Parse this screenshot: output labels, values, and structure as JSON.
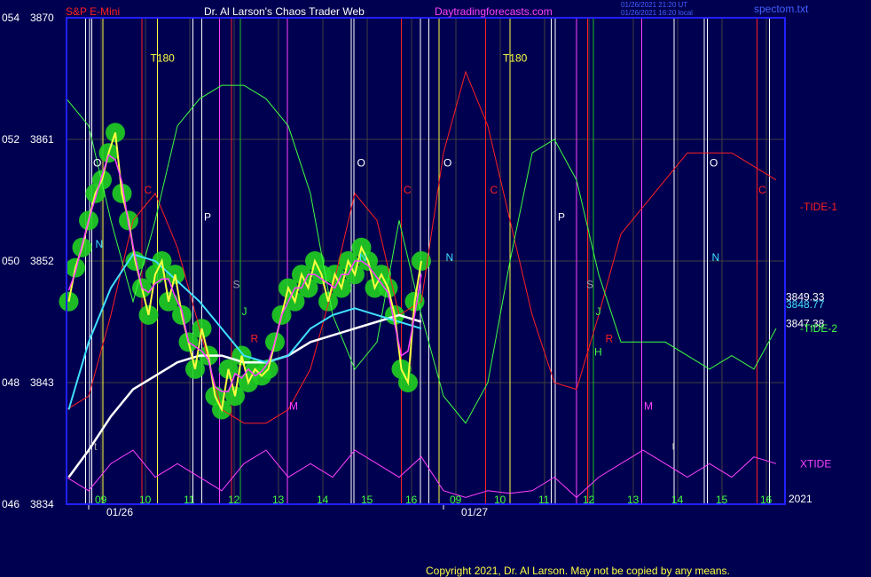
{
  "header": {
    "instrument": "S&P E-Mini",
    "title": "Dr. Al Larson's Chaos Trader Web",
    "site": "Daytradingforecasts.com",
    "timestamp_line1": "01/26/2021 21:20 UT",
    "timestamp_line2": "01/26/2021 16:20 local",
    "filename": "spectom.txt"
  },
  "footer": {
    "copyright": "Copyright 2021, Dr. Al Larson. May not be copied by any means.",
    "year": "2021"
  },
  "colors": {
    "background": "#000050",
    "plot_border": "#2020ff",
    "grid": "#404040",
    "price": "#ffff40",
    "fast_avg": "#ff40ff",
    "ema_cyan": "#40e0ff",
    "ema_white": "#ffffff",
    "tide1": "#ff2020",
    "tide2": "#40ff40",
    "xtide": "#ff40ff",
    "bubble": "#20d020",
    "title_color": "#ffffff",
    "site_color": "#ff40ff"
  },
  "chart_data": {
    "type": "line",
    "title": "S&P E-Mini",
    "ylim": [
      3834,
      3870
    ],
    "y_ticks": [
      {
        "left": "054",
        "price": "3870",
        "value": 3870
      },
      {
        "left": "052",
        "price": "3861",
        "value": 3861
      },
      {
        "left": "050",
        "price": "3852",
        "value": 3852
      },
      {
        "left": "048",
        "price": "3843",
        "value": 3843
      },
      {
        "left": "046",
        "price": "3834",
        "value": 3834
      }
    ],
    "x_hour_labels": [
      {
        "label": "09",
        "t": 0.78
      },
      {
        "label": "10",
        "t": 1.78
      },
      {
        "label": "11",
        "t": 2.78
      },
      {
        "label": "12",
        "t": 3.78
      },
      {
        "label": "13",
        "t": 4.78
      },
      {
        "label": "14",
        "t": 5.78
      },
      {
        "label": "15",
        "t": 6.78
      },
      {
        "label": "16",
        "t": 7.78
      },
      {
        "label": "09",
        "t": 8.78
      },
      {
        "label": "10",
        "t": 9.78
      },
      {
        "label": "11",
        "t": 10.78
      },
      {
        "label": "12",
        "t": 11.78
      },
      {
        "label": "13",
        "t": 12.78
      },
      {
        "label": "14",
        "t": 13.78
      },
      {
        "label": "15",
        "t": 14.78
      },
      {
        "label": "16",
        "t": 15.78
      }
    ],
    "date_labels": [
      {
        "label": "01/26",
        "t": 0.5
      },
      {
        "label": "01/27",
        "t": 8.5
      }
    ],
    "series": [
      {
        "name": "price",
        "x": [
          0.05,
          0.2,
          0.35,
          0.5,
          0.65,
          0.8,
          0.95,
          1.1,
          1.25,
          1.4,
          1.55,
          1.7,
          1.85,
          2.0,
          2.15,
          2.3,
          2.45,
          2.6,
          2.75,
          2.9,
          3.05,
          3.2,
          3.35,
          3.5,
          3.65,
          3.8,
          3.95,
          4.1,
          4.25,
          4.4,
          4.55,
          4.7,
          4.85,
          5.0,
          5.15,
          5.3,
          5.45,
          5.6,
          5.75,
          5.9,
          6.05,
          6.2,
          6.35,
          6.5,
          6.65,
          6.8,
          6.95,
          7.1,
          7.25,
          7.4,
          7.55,
          7.7,
          7.85,
          8.0
        ],
        "values": [
          3849,
          3851.5,
          3853,
          3855,
          3857,
          3858,
          3860,
          3861.5,
          3857,
          3855,
          3852,
          3850,
          3848,
          3851,
          3852,
          3849,
          3851,
          3848,
          3846,
          3844,
          3847,
          3845,
          3842,
          3841,
          3844,
          3842,
          3845,
          3843,
          3844,
          3843.5,
          3844,
          3846,
          3848,
          3850,
          3849,
          3851,
          3850,
          3852,
          3851,
          3849,
          3851,
          3850,
          3852,
          3851,
          3853,
          3852,
          3850,
          3851,
          3850,
          3848,
          3844,
          3843,
          3849,
          3852
        ]
      },
      {
        "name": "ema-cyan",
        "x": [
          0.05,
          0.5,
          1.0,
          1.5,
          2.0,
          2.5,
          3.0,
          3.5,
          4.0,
          4.5,
          5.0,
          5.5,
          6.0,
          6.5,
          7.0,
          7.5,
          8.0
        ],
        "values": [
          3841,
          3846,
          3850,
          3852.5,
          3852,
          3850.5,
          3849,
          3847,
          3845,
          3844.5,
          3845,
          3847,
          3848,
          3848.5,
          3848,
          3847.5,
          3847
        ]
      },
      {
        "name": "ema-white",
        "x": [
          0.05,
          0.5,
          1.0,
          1.5,
          2.0,
          2.5,
          3.0,
          3.5,
          4.0,
          4.5,
          5.0,
          5.5,
          6.0,
          6.5,
          7.0,
          7.5,
          8.0
        ],
        "values": [
          3836,
          3838,
          3840.5,
          3842.5,
          3843.5,
          3844.5,
          3845,
          3845,
          3844.5,
          3844.5,
          3845,
          3846,
          3846.5,
          3847,
          3847.5,
          3848,
          3847.5
        ]
      },
      {
        "name": "-TIDE-1",
        "x": [
          0,
          0.5,
          1.0,
          1.5,
          2.0,
          2.5,
          3.0,
          3.5,
          4.0,
          4.5,
          5.0,
          5.5,
          6.0,
          6.5,
          7.0,
          7.5,
          8.0,
          8.5,
          9.0,
          9.5,
          10.0,
          10.5,
          11.0,
          11.5,
          12.0,
          12.5,
          13.0,
          13.5,
          14.0,
          14.5,
          15.0,
          15.5,
          16.0
        ],
        "values": [
          3841,
          3842,
          3848,
          3855,
          3857,
          3853,
          3847,
          3841,
          3840,
          3840,
          3841,
          3844,
          3850,
          3857,
          3855,
          3848,
          3849,
          3860,
          3866,
          3862,
          3855,
          3848,
          3843,
          3842.5,
          3848,
          3854,
          3856,
          3858,
          3860,
          3860,
          3860,
          3859,
          3858
        ]
      },
      {
        "name": "-TIDE-2",
        "x": [
          0,
          0.5,
          1.0,
          1.5,
          2.0,
          2.5,
          3.0,
          3.5,
          4.0,
          4.5,
          5.0,
          5.5,
          6.0,
          6.5,
          7.0,
          7.5,
          8.0,
          8.5,
          9.0,
          9.5,
          10.0,
          10.5,
          11.0,
          11.5,
          12.0,
          12.5,
          13.0,
          13.5,
          14.0,
          14.5,
          15.0,
          15.5,
          16.0
        ],
        "values": [
          3864,
          3862,
          3855,
          3849,
          3855,
          3862,
          3864,
          3865,
          3865,
          3864,
          3862,
          3857,
          3848,
          3844,
          3846,
          3855,
          3848,
          3842,
          3840,
          3843,
          3852,
          3860,
          3861,
          3858,
          3851,
          3846,
          3846,
          3846,
          3845,
          3844,
          3845,
          3844,
          3847
        ]
      },
      {
        "name": "XTIDE",
        "x": [
          0,
          0.5,
          1.0,
          1.5,
          2.0,
          2.5,
          3.0,
          3.5,
          4.0,
          4.5,
          5.0,
          5.5,
          6.0,
          6.5,
          7.0,
          7.5,
          8.0,
          8.5,
          9.0,
          9.5,
          10.0,
          10.5,
          11.0,
          11.5,
          12.0,
          12.5,
          13.0,
          13.5,
          14.0,
          14.5,
          15.0,
          15.5,
          16.0
        ],
        "values": [
          3836,
          3835,
          3837,
          3838,
          3836,
          3837,
          3836,
          3835,
          3837,
          3838,
          3836,
          3837,
          3836,
          3838,
          3837,
          3836,
          3837.5,
          3835,
          3834.5,
          3835,
          3834.8,
          3835,
          3836,
          3834.5,
          3836,
          3837,
          3838,
          3837,
          3836,
          3837,
          3836,
          3837.5,
          3837
        ]
      }
    ],
    "value_labels": [
      {
        "label": "3849.33",
        "value": 3849.33,
        "color": "#ffffff"
      },
      {
        "label": "3848.77",
        "value": 3848.77,
        "color": "#40e0ff"
      },
      {
        "label": "3847.38",
        "value": 3847.38,
        "color": "#ffffff"
      }
    ],
    "series_labels": [
      {
        "label": "-TIDE-1",
        "value": 3856,
        "color": "#ff2020"
      },
      {
        "label": "-TIDE-2",
        "value": 3847,
        "color": "#40ff40"
      },
      {
        "label": "XTIDE",
        "value": 3837,
        "color": "#ff40ff"
      }
    ],
    "vertical_markers": [
      {
        "t": 0.43,
        "color": "#ffffff"
      },
      {
        "t": 0.52,
        "color": "#ffffff"
      },
      {
        "t": 0.57,
        "color": "#ffffff"
      },
      {
        "t": 0.82,
        "color": "#ffff40"
      },
      {
        "t": 1.7,
        "color": "#ff2020"
      },
      {
        "t": 2.05,
        "color": "#ffff40"
      },
      {
        "t": 2.85,
        "color": "#ffffff"
      },
      {
        "t": 3.05,
        "color": "#ffffff"
      },
      {
        "t": 3.45,
        "color": "#ff40ff"
      },
      {
        "t": 3.72,
        "color": "#ff2020"
      },
      {
        "t": 3.92,
        "color": "#20c020"
      },
      {
        "t": 4.98,
        "color": "#ff40ff"
      },
      {
        "t": 6.42,
        "color": "#ffffff"
      },
      {
        "t": 6.48,
        "color": "#ffffff"
      },
      {
        "t": 7.55,
        "color": "#ff2020"
      },
      {
        "t": 7.98,
        "color": "#ffffff"
      },
      {
        "t": 8.17,
        "color": "#ffffff"
      },
      {
        "t": 8.4,
        "color": "#ffff40"
      },
      {
        "t": 9.45,
        "color": "#ff2020"
      },
      {
        "t": 10.0,
        "color": "#ffff40"
      },
      {
        "t": 10.93,
        "color": "#ffffff"
      },
      {
        "t": 11.02,
        "color": "#ffffff"
      },
      {
        "t": 11.5,
        "color": "#ff40ff"
      },
      {
        "t": 11.75,
        "color": "#ff2020"
      },
      {
        "t": 11.88,
        "color": "#20c020"
      },
      {
        "t": 12.97,
        "color": "#ff40ff"
      },
      {
        "t": 13.7,
        "color": "#ffffff"
      },
      {
        "t": 14.38,
        "color": "#ffffff"
      },
      {
        "t": 14.45,
        "color": "#ffffff"
      },
      {
        "t": 15.57,
        "color": "#ff2020"
      },
      {
        "t": 15.85,
        "color": "#ffffff"
      }
    ],
    "planet_markers": [
      {
        "label": "O",
        "t": 0.6,
        "value": 3859,
        "color": "#ffffff"
      },
      {
        "label": "N",
        "t": 0.65,
        "value": 3853,
        "color": "#40e0ff"
      },
      {
        "label": "C",
        "t": 1.75,
        "value": 3857,
        "color": "#ff2020"
      },
      {
        "label": "P",
        "t": 3.1,
        "value": 3855,
        "color": "#ffffff"
      },
      {
        "label": "S",
        "t": 3.75,
        "value": 3850,
        "color": "#a0a0a0"
      },
      {
        "label": "J",
        "t": 3.95,
        "value": 3848,
        "color": "#40ff40"
      },
      {
        "label": "R",
        "t": 4.15,
        "value": 3846,
        "color": "#ff2020"
      },
      {
        "label": "M",
        "t": 5.02,
        "value": 3841,
        "color": "#ff40ff"
      },
      {
        "label": "O",
        "t": 6.55,
        "value": 3859,
        "color": "#ffffff"
      },
      {
        "label": "N",
        "t": 6.6,
        "value": 3852,
        "color": "#40e0ff"
      },
      {
        "label": "C",
        "t": 7.6,
        "value": 3857,
        "color": "#ff2020"
      },
      {
        "label": "O",
        "t": 8.5,
        "value": 3859,
        "color": "#ffffff"
      },
      {
        "label": "N",
        "t": 8.55,
        "value": 3852,
        "color": "#40e0ff"
      },
      {
        "label": "C",
        "t": 9.55,
        "value": 3857,
        "color": "#ff2020"
      },
      {
        "label": "P",
        "t": 11.08,
        "value": 3855,
        "color": "#ffffff"
      },
      {
        "label": "S",
        "t": 11.72,
        "value": 3850,
        "color": "#a0a0a0"
      },
      {
        "label": "J",
        "t": 11.93,
        "value": 3848,
        "color": "#40ff40"
      },
      {
        "label": "R",
        "t": 12.15,
        "value": 3846,
        "color": "#ff2020"
      },
      {
        "label": "H",
        "t": 11.9,
        "value": 3845,
        "color": "#40ff40"
      },
      {
        "label": "M",
        "t": 13.02,
        "value": 3841,
        "color": "#ff40ff"
      },
      {
        "label": "O",
        "t": 14.5,
        "value": 3859,
        "color": "#ffffff"
      },
      {
        "label": "N",
        "t": 14.55,
        "value": 3852,
        "color": "#40e0ff"
      },
      {
        "label": "C",
        "t": 15.6,
        "value": 3857,
        "color": "#ff2020"
      }
    ],
    "t180_labels": [
      {
        "label": "T180",
        "t": 2.05,
        "value": 3867
      },
      {
        "label": "T180",
        "t": 10.0,
        "value": 3867
      }
    ],
    "time_markers": [
      {
        "label": "t",
        "t": 0.62,
        "value": 3838
      },
      {
        "label": "t",
        "t": 13.65,
        "value": 3838
      }
    ],
    "grid": true
  }
}
